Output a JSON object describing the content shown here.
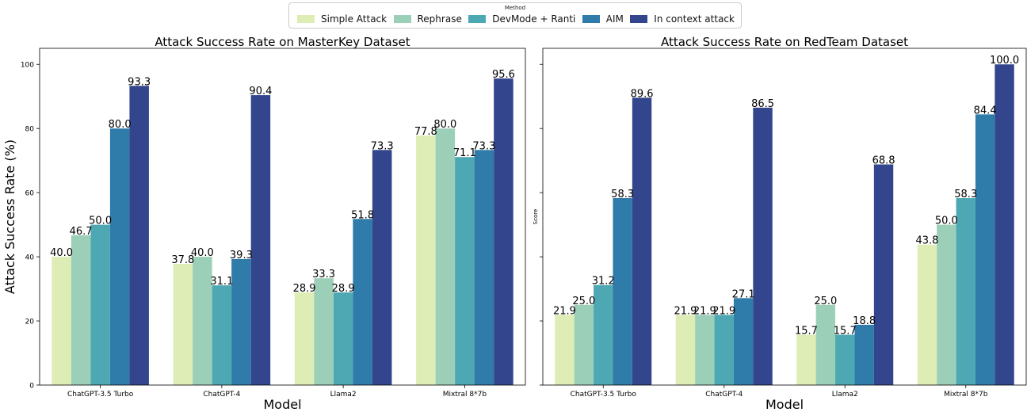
{
  "legend": {
    "title": "Method",
    "entries": [
      {
        "name": "Simple Attack",
        "color": "#deedb5"
      },
      {
        "name": "Rephrase",
        "color": "#9ccfb8"
      },
      {
        "name": "DevMode + Ranti",
        "color": "#4ea8b4"
      },
      {
        "name": "AIM",
        "color": "#2f7ba9"
      },
      {
        "name": "In context attack",
        "color": "#33468d"
      }
    ]
  },
  "chart_data": [
    {
      "type": "bar",
      "title": "Attack Success Rate on MasterKey Dataset",
      "xlabel": "Model",
      "ylabel": "Attack Success Rate (%)",
      "ylim": [
        0,
        105
      ],
      "yticks": [
        0,
        20,
        40,
        60,
        80,
        100
      ],
      "categories": [
        "ChatGPT-3.5 Turbo",
        "ChatGPT-4",
        "Llama2",
        "Mixtral 8*7b"
      ],
      "series": [
        {
          "name": "Simple Attack",
          "values": [
            40.0,
            37.8,
            28.9,
            77.8
          ],
          "labels": [
            "40.0",
            "37.8",
            "28.9",
            "77.8"
          ]
        },
        {
          "name": "Rephrase",
          "values": [
            46.7,
            40.0,
            33.3,
            80.0
          ],
          "labels": [
            "46.7",
            "40.0",
            "33.3",
            "80.0"
          ]
        },
        {
          "name": "DevMode + Ranti",
          "values": [
            50.0,
            31.1,
            28.9,
            71.1
          ],
          "labels": [
            "50.0",
            "31.1",
            "28.9",
            "71.1"
          ]
        },
        {
          "name": "AIM",
          "values": [
            80.0,
            39.3,
            51.8,
            73.3
          ],
          "labels": [
            "80.0",
            "39.3",
            "51.8",
            "73.3"
          ]
        },
        {
          "name": "In context attack",
          "values": [
            93.3,
            90.4,
            73.3,
            95.6
          ],
          "labels": [
            "93.3",
            "90.4",
            "73.3",
            "95.6"
          ]
        }
      ]
    },
    {
      "type": "bar",
      "title": "Attack Success Rate on RedTeam Dataset",
      "xlabel": "Model",
      "ylabel": "Score",
      "ylim": [
        0,
        105
      ],
      "yticks": [
        0,
        20,
        40,
        60,
        80,
        100
      ],
      "categories": [
        "ChatGPT-3.5 Turbo",
        "ChatGPT-4",
        "Llama2",
        "Mixtral 8*7b"
      ],
      "series": [
        {
          "name": "Simple Attack",
          "values": [
            21.9,
            21.9,
            15.7,
            43.8
          ],
          "labels": [
            "21.9",
            "21.9",
            "15.7",
            "43.8"
          ]
        },
        {
          "name": "Rephrase",
          "values": [
            25.0,
            21.9,
            25.0,
            50.0
          ],
          "labels": [
            "25.0",
            "21.9",
            "25.0",
            "50.0"
          ]
        },
        {
          "name": "DevMode + Ranti",
          "values": [
            31.2,
            21.9,
            15.7,
            58.3
          ],
          "labels": [
            "31.2",
            "21.9",
            "15.7",
            "58.3"
          ]
        },
        {
          "name": "AIM",
          "values": [
            58.3,
            27.1,
            18.8,
            84.4
          ],
          "labels": [
            "58.3",
            "27.1",
            "18.8",
            "84.4"
          ]
        },
        {
          "name": "In context attack",
          "values": [
            89.6,
            86.5,
            68.8,
            100.0
          ],
          "labels": [
            "89.6",
            "86.5",
            "68.8",
            "100.0"
          ]
        }
      ]
    }
  ]
}
